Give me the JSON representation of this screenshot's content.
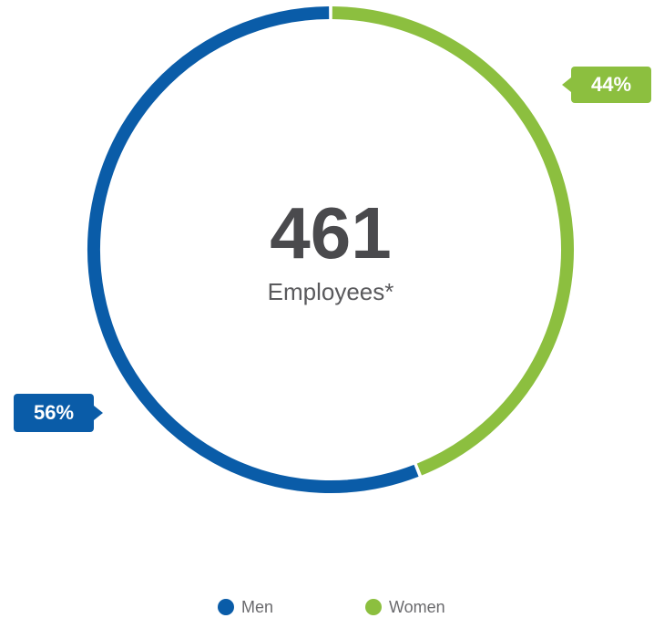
{
  "chart_data": {
    "type": "donut",
    "categories": [
      "Men",
      "Women"
    ],
    "values": [
      56,
      44
    ],
    "value_labels": [
      "56%",
      "44%"
    ],
    "colors": [
      "#0a5ca8",
      "#8cbf3f"
    ],
    "center_value": 461,
    "center_label": "Employees*",
    "legend": true
  }
}
